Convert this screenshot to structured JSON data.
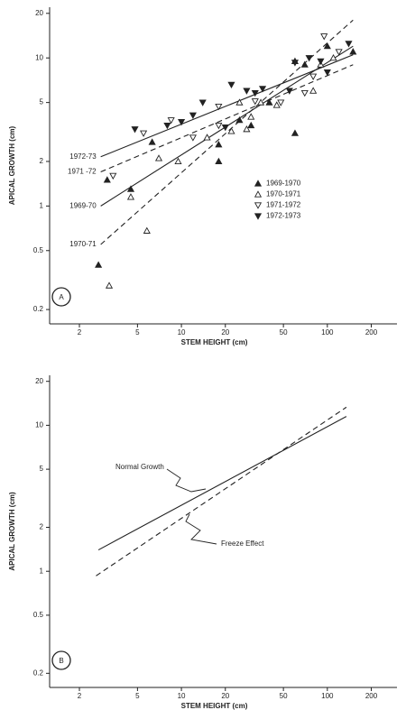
{
  "chart_data": [
    {
      "type": "scatter",
      "panel_label": "A",
      "x_label": "STEM HEIGHT (cm)",
      "y_label": "APICAL GROWTH (cm)",
      "log_x": true,
      "log_y": true,
      "xlim": [
        1.25,
        300
      ],
      "ylim": [
        0.16,
        22
      ],
      "xticks": [
        2,
        5,
        10,
        20,
        50,
        100,
        200
      ],
      "yticks": [
        0.2,
        0.5,
        1,
        2,
        5,
        10,
        20
      ],
      "legend": "center right",
      "color": "#222",
      "series": [
        {
          "name": "1969-1970",
          "shape": "triangle-up",
          "filled": true,
          "x": [
            2.7,
            3.1,
            4.5,
            6.3,
            18,
            18,
            25,
            30,
            40,
            60,
            60,
            100,
            150,
            70
          ],
          "values": [
            0.4,
            1.5,
            1.3,
            2.7,
            2.0,
            2.6,
            3.8,
            3.5,
            5,
            9.5,
            3.1,
            12,
            11,
            9
          ]
        },
        {
          "name": "1970-1971",
          "shape": "triangle-up",
          "filled": false,
          "x": [
            3.2,
            4.5,
            5.8,
            7,
            9.5,
            15,
            22,
            25,
            28,
            35,
            45,
            80,
            90,
            110,
            30
          ],
          "values": [
            0.29,
            1.15,
            0.68,
            2.1,
            2.0,
            2.9,
            3.2,
            5,
            3.3,
            5,
            4.8,
            6,
            9,
            10,
            4
          ]
        },
        {
          "name": "1971-1972",
          "shape": "triangle-down",
          "filled": false,
          "x": [
            3.4,
            5.5,
            8.5,
            12,
            18,
            32,
            48,
            70,
            80,
            120,
            95,
            18
          ],
          "values": [
            1.6,
            3.1,
            3.8,
            2.9,
            4.7,
            5.1,
            5,
            5.8,
            7.5,
            11,
            14,
            3.5
          ]
        },
        {
          "name": "1972-1973",
          "shape": "triangle-down",
          "filled": true,
          "x": [
            4.8,
            8,
            10,
            12,
            14,
            20,
            22,
            28,
            32,
            36,
            55,
            60,
            75,
            90,
            100,
            140
          ],
          "values": [
            3.3,
            3.5,
            3.7,
            4.1,
            5,
            3.4,
            6.6,
            6,
            5.8,
            6.2,
            6,
            9.3,
            10,
            9.5,
            8,
            12.5
          ]
        }
      ],
      "fit_lines": [
        {
          "label": "1972-73",
          "style": "solid",
          "x": [
            2.8,
            150
          ],
          "values": [
            2.15,
            10.5
          ]
        },
        {
          "label": "1971 -72",
          "style": "dashed",
          "x": [
            2.8,
            150
          ],
          "values": [
            1.7,
            9
          ]
        },
        {
          "label": "1969-70",
          "style": "solid",
          "x": [
            2.8,
            150
          ],
          "values": [
            1.0,
            12
          ]
        },
        {
          "label": "1970-71",
          "style": "dashed",
          "x": [
            2.8,
            150
          ],
          "values": [
            0.55,
            18
          ]
        }
      ]
    },
    {
      "type": "line",
      "panel_label": "B",
      "x_label": "STEM HEIGHT (cm)",
      "y_label": "APICAL GROWTH (cm)",
      "log_x": true,
      "log_y": true,
      "xlim": [
        1.25,
        300
      ],
      "ylim": [
        0.16,
        22
      ],
      "xticks": [
        2,
        5,
        10,
        20,
        50,
        100,
        200
      ],
      "yticks": [
        0.2,
        0.5,
        1,
        2,
        5,
        10,
        20
      ],
      "color": "#222",
      "fit_lines": [
        {
          "label": "Normal Growth",
          "style": "solid",
          "x": [
            2.7,
            135
          ],
          "values": [
            1.4,
            11.5
          ]
        },
        {
          "label": "Freeze Effect",
          "style": "dashed",
          "x": [
            2.6,
            135
          ],
          "values": [
            0.93,
            13.3
          ]
        }
      ]
    }
  ]
}
